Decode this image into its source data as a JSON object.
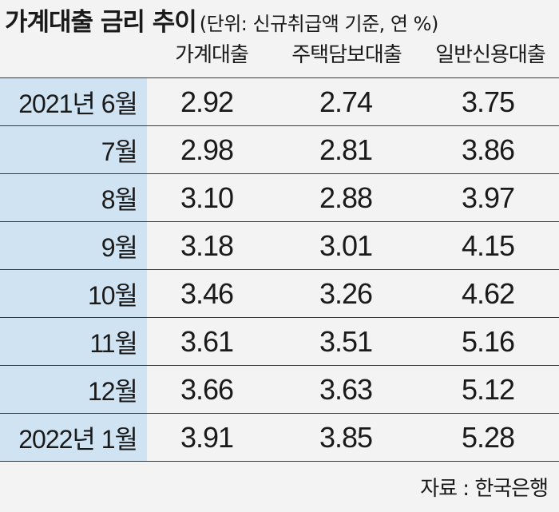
{
  "chart_data": {
    "type": "table",
    "title": "가계대출 금리 추이",
    "unit_note": "(단위: 신규취급액 기준, 연 %)",
    "columns": [
      "가계대출",
      "주택담보대출",
      "일반신용대출"
    ],
    "rows": [
      {
        "label": "2021년 6월",
        "values": [
          "2.92",
          "2.74",
          "3.75"
        ]
      },
      {
        "label": "7월",
        "values": [
          "2.98",
          "2.81",
          "3.86"
        ]
      },
      {
        "label": "8월",
        "values": [
          "3.10",
          "2.88",
          "3.97"
        ]
      },
      {
        "label": "9월",
        "values": [
          "3.18",
          "3.01",
          "4.15"
        ]
      },
      {
        "label": "10월",
        "values": [
          "3.46",
          "3.26",
          "4.62"
        ]
      },
      {
        "label": "11월",
        "values": [
          "3.61",
          "3.51",
          "5.16"
        ]
      },
      {
        "label": "12월",
        "values": [
          "3.66",
          "3.63",
          "5.12"
        ]
      },
      {
        "label": "2022년 1월",
        "values": [
          "3.91",
          "3.85",
          "5.28"
        ]
      }
    ],
    "source": "자료 : 한국은행"
  },
  "colors": {
    "background": "#f3f3f3",
    "label_column": "#cfe3f2",
    "rule": "#3a3a3a"
  }
}
